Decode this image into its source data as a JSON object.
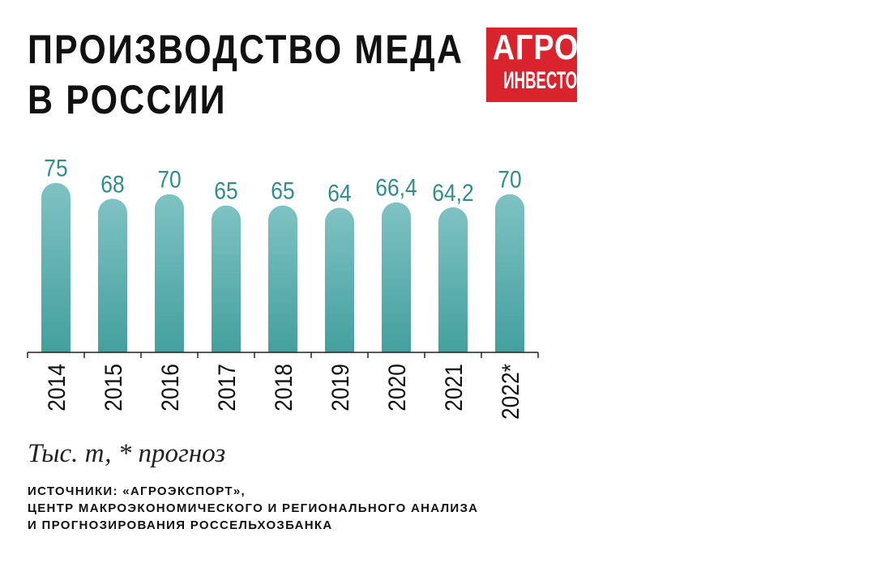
{
  "title": {
    "line1": "ПРОИЗВОДСТВО МЕДА",
    "line2": "В РОССИИ"
  },
  "logo": {
    "line1": "АГРО",
    "line2": "ИНВЕСТОР",
    "color": "#d9232d"
  },
  "chart_data": {
    "type": "bar",
    "categories": [
      "2014",
      "2015",
      "2016",
      "2017",
      "2018",
      "2019",
      "2020",
      "2021",
      "2022*"
    ],
    "values": [
      75,
      68,
      70,
      65,
      65,
      64,
      66.4,
      64.2,
      70
    ],
    "value_labels": [
      "75",
      "68",
      "70",
      "65",
      "65",
      "64",
      "66,4",
      "64,2",
      "70"
    ],
    "bar_color": "#4fa8a8",
    "label_color": "#2e8d8d",
    "grid": false,
    "legend": "none"
  },
  "note": "Тыс. т, * прогноз",
  "sources": {
    "line1": "ИСТОЧНИКИ: «АГРОЭКСПОРТ»,",
    "line2": "ЦЕНТР МАКРОЭКОНОМИЧЕСКОГО И РЕГИОНАЛЬНОГО АНАЛИЗА",
    "line3": "И ПРОГНОЗИРОВАНИЯ РОССЕЛЬХОЗБАНКА"
  }
}
